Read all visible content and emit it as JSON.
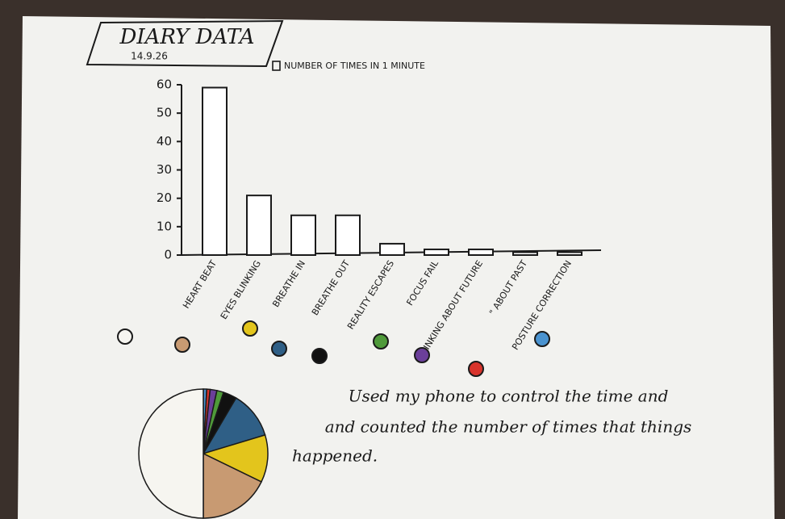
{
  "chart_data": [
    {
      "type": "bar",
      "title": "DIARY DATA",
      "subtitle": "14.9.26",
      "categories": [
        "HEART BEAT",
        "EYES BLINKING",
        "BREATHE IN",
        "BREATHE OUT",
        "REALITY ESCAPES",
        "FOCUS FAIL",
        "THINKING ABOUT FUTURE",
        "\" ABOUT PAST",
        "POSTURE CORRECTION"
      ],
      "series": [
        {
          "name": "NUMBER OF TIMES IN 1 MINUTE",
          "color": "#ffffff",
          "values": [
            59,
            21,
            14,
            14,
            4,
            2,
            2,
            1,
            1
          ]
        }
      ],
      "ylim": [
        0,
        60
      ],
      "yticks": [
        0,
        10,
        20,
        30,
        40,
        50,
        60
      ],
      "grid": false,
      "annotations": [
        "Used my phone to control the time and",
        "and counted the number of times that things",
        "happened."
      ]
    },
    {
      "type": "pie",
      "values": [
        59,
        21,
        14,
        14,
        4,
        2,
        2,
        1,
        1
      ],
      "colors": [
        "#f6f5f0",
        "#c89a72",
        "#e3c51c",
        "#2f5f86",
        "#111111",
        "#4f9a3a",
        "#6b3f9a",
        "#d8342c",
        "#4a93d0"
      ]
    }
  ]
}
